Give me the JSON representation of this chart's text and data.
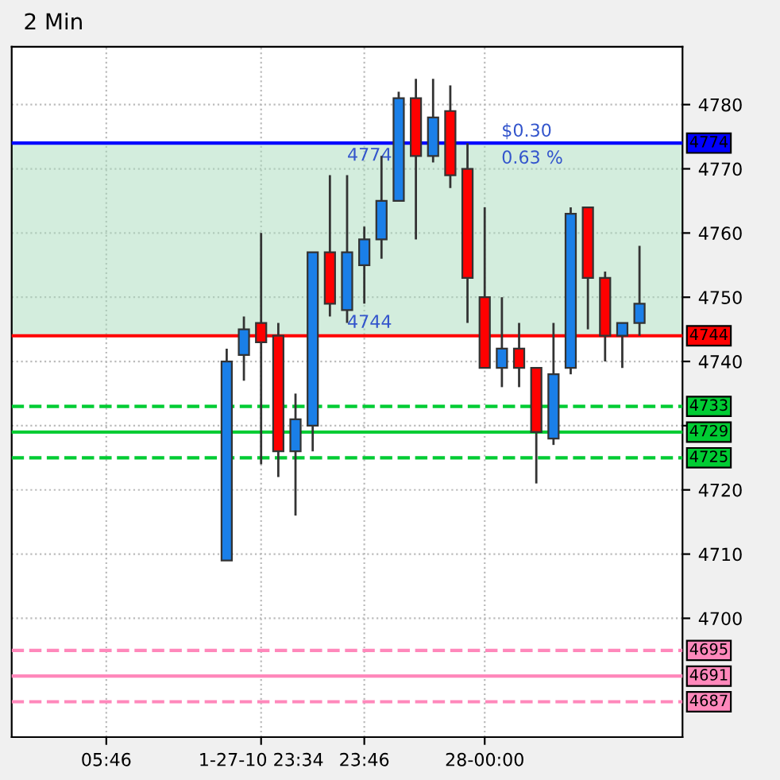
{
  "chart_data": {
    "type": "candlestick",
    "title": "2 Min",
    "categories": [
      null,
      null,
      null,
      null,
      null,
      "05:46",
      null,
      null,
      null,
      null,
      null,
      null,
      null,
      null,
      "1-27-10 23:34",
      null,
      null,
      null,
      null,
      null,
      "23:46",
      null,
      null,
      null,
      null,
      null,
      null,
      "28-00:00",
      null,
      null,
      null,
      null,
      null,
      null,
      null,
      null,
      null,
      null,
      null
    ],
    "ohlc": [
      null,
      null,
      null,
      null,
      null,
      null,
      null,
      null,
      null,
      null,
      null,
      null,
      [
        4709,
        4742,
        4709,
        4740
      ],
      [
        4741,
        4747,
        4737,
        4745
      ],
      [
        4746,
        4760,
        4724,
        4743
      ],
      [
        4744,
        4746,
        4722,
        4726
      ],
      [
        4726,
        4735,
        4716,
        4731
      ],
      [
        4730,
        4757,
        4726,
        4757
      ],
      [
        4757,
        4769,
        4747,
        4749
      ],
      [
        4748,
        4769,
        4746,
        4757
      ],
      [
        4755,
        4761,
        4749,
        4759
      ],
      [
        4759,
        4772,
        4756,
        4765
      ],
      [
        4765,
        4782,
        4765,
        4781
      ],
      [
        4781,
        4784,
        4759,
        4772
      ],
      [
        4772,
        4784,
        4771,
        4778
      ],
      [
        4779,
        4783,
        4767,
        4769
      ],
      [
        4770,
        4774,
        4746,
        4753
      ],
      [
        4750,
        4764,
        4739,
        4739
      ],
      [
        4739,
        4750,
        4736,
        4742
      ],
      [
        4742,
        4746,
        4736,
        4739
      ],
      [
        4739,
        4739,
        4721,
        4729
      ],
      [
        4728,
        4746,
        4727,
        4738
      ],
      [
        4739,
        4764,
        4738,
        4763
      ],
      [
        4764,
        4764,
        4745,
        4753
      ],
      [
        4753,
        4754,
        4740,
        4744
      ],
      [
        4744,
        4746,
        4739,
        4746
      ],
      [
        4746,
        4758,
        4744,
        4749
      ],
      null,
      null
    ],
    "colors": [
      null,
      null,
      null,
      null,
      null,
      null,
      null,
      null,
      null,
      null,
      null,
      null,
      "#1a7fe8",
      "#1a7fe8",
      "#ff0000",
      "#ff0000",
      "#1a7fe8",
      "#1a7fe8",
      "#ff0000",
      "#1a7fe8",
      "#1a7fe8",
      "#1a7fe8",
      "#1a7fe8",
      "#ff0000",
      "#1a7fe8",
      "#ff0000",
      "#ff0000",
      "#ff0000",
      "#1a7fe8",
      "#ff0000",
      "#ff0000",
      "#1a7fe8",
      "#1a7fe8",
      "#ff0000",
      "#ff0000",
      "#1a7fe8",
      "#1a7fe8",
      null,
      null
    ],
    "ylim": [
      4681.5,
      4789
    ],
    "yticks": [
      4700,
      4710,
      4720,
      {
        "value": 4730,
        "label": null
      },
      4740,
      4750,
      4760,
      4770,
      4780
    ],
    "grid": true,
    "ref_lines": [
      {
        "axis": "y",
        "value": 4774,
        "label": "4774",
        "color": "#0000ff",
        "line_style": "solid"
      },
      {
        "axis": "y",
        "value": 4744,
        "label": "4744",
        "color": "#ff0000",
        "line_style": "solid"
      },
      {
        "axis": "y",
        "value": 4733,
        "label": "4733",
        "color": "#00cc33",
        "line_style": "dashed"
      },
      {
        "axis": "y",
        "value": 4729,
        "label": "4729",
        "color": "#00cc33",
        "line_style": "solid"
      },
      {
        "axis": "y",
        "value": 4725,
        "label": "4725",
        "color": "#00cc33",
        "line_style": "dashed"
      },
      {
        "axis": "y",
        "value": 4695,
        "label": "4695",
        "color": "#ff88bb",
        "line_style": "dashed"
      },
      {
        "axis": "y",
        "value": 4691,
        "label": "4691",
        "color": "#ff88bb",
        "line_style": "solid"
      },
      {
        "axis": "y",
        "value": 4687,
        "label": "4687",
        "color": "#ff88bb",
        "line_style": "dashed"
      }
    ],
    "bands": [
      {
        "axis": "y",
        "from": 4744,
        "to": 4774,
        "color": "#a8dcbc"
      }
    ],
    "annotations": [
      "4774",
      "4744",
      "$0.30",
      "0.63 %"
    ]
  }
}
